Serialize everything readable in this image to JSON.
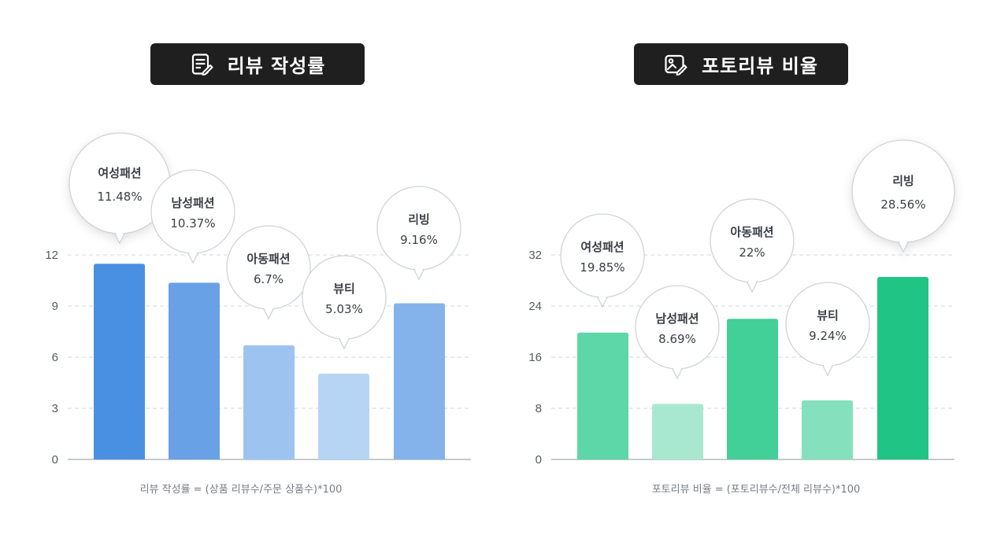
{
  "chart_data": [
    {
      "type": "bar",
      "title": "리뷰 작성률",
      "title_icon": "document-edit-icon",
      "categories": [
        "여성패션",
        "남성패션",
        "아동패션",
        "뷰티",
        "리빙"
      ],
      "values": [
        11.48,
        10.37,
        6.7,
        5.03,
        9.16
      ],
      "value_labels": [
        "11.48%",
        "10.37%",
        "6.7%",
        "5.03%",
        "9.16%"
      ],
      "highlight_index": 0,
      "yticks": [
        "0",
        "3",
        "6",
        "9",
        "12"
      ],
      "ylim": [
        0,
        12
      ],
      "grid": true,
      "bar_colors": [
        "#4a90e2",
        "#68a1e6",
        "#9dc3f0",
        "#b6d4f4",
        "#84b3ec"
      ],
      "highlight_color": "#3f84cf",
      "formula": "리뷰 작성률 = (상품 리뷰수/주문 상품수)*100"
    },
    {
      "type": "bar",
      "title": "포토리뷰 비율",
      "title_icon": "photo-edit-icon",
      "categories": [
        "여성패션",
        "남성패션",
        "아동패션",
        "뷰티",
        "리빙"
      ],
      "values": [
        19.85,
        8.69,
        22,
        9.24,
        28.56
      ],
      "value_labels": [
        "19.85%",
        "8.69%",
        "22%",
        "9.24%",
        "28.56%"
      ],
      "highlight_index": 4,
      "yticks": [
        "0",
        "8",
        "16",
        "24",
        "32"
      ],
      "ylim": [
        0,
        32
      ],
      "grid": true,
      "bar_colors": [
        "#5dd6a8",
        "#a8e8d0",
        "#42cf98",
        "#85e0bd",
        "#20c585"
      ],
      "highlight_color": "#1db47a",
      "formula": "포토리뷰 비율 = (포토리뷰수/전체 리뷰수)*100"
    }
  ]
}
